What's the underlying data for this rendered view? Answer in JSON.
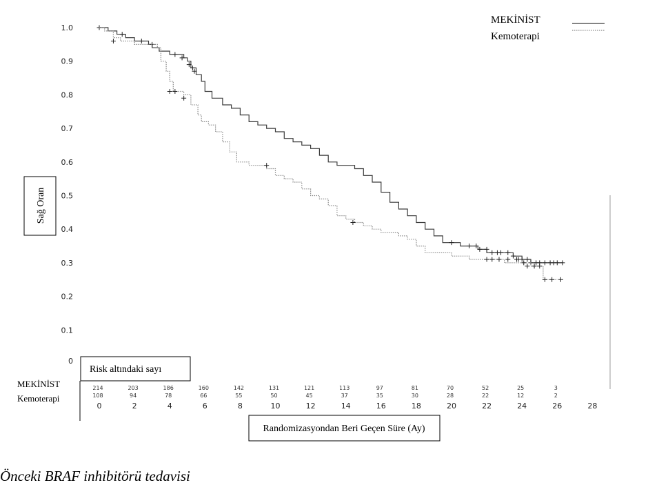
{
  "chart_data": {
    "type": "line",
    "title": "",
    "ylabel": "Sağ Oran",
    "xlabel": "Randomizasyondan Beri Geçen Süre (Ay)",
    "xlim": [
      0,
      28
    ],
    "ylim": [
      0,
      1.0
    ],
    "x_ticks": [
      0,
      2,
      4,
      6,
      8,
      10,
      12,
      14,
      16,
      18,
      20,
      22,
      24,
      26,
      28
    ],
    "y_ticks": [
      {
        "v": 1.0,
        "label": "1.0"
      },
      {
        "v": 0.9,
        "label": "0.9"
      },
      {
        "v": 0.8,
        "label": "0.8"
      },
      {
        "v": 0.7,
        "label": "0.7"
      },
      {
        "v": 0.6,
        "label": "0.6"
      },
      {
        "v": 0.5,
        "label": "0.5"
      },
      {
        "v": 0.4,
        "label": "0.4"
      },
      {
        "v": 0.3,
        "label": "0.3"
      },
      {
        "v": 0.2,
        "label": "0.2"
      },
      {
        "v": 0.1,
        "label": "0.1"
      },
      {
        "v": 0,
        "label": "0"
      }
    ],
    "legend_position": "top-right",
    "series": [
      {
        "name": "MEKİNİST",
        "color": "#3a3a3a",
        "style": "solid",
        "points": [
          [
            0,
            1.0
          ],
          [
            0.5,
            0.99
          ],
          [
            1,
            0.98
          ],
          [
            1.5,
            0.97
          ],
          [
            2,
            0.96
          ],
          [
            2.8,
            0.95
          ],
          [
            3,
            0.94
          ],
          [
            3.4,
            0.93
          ],
          [
            4,
            0.92
          ],
          [
            4.8,
            0.91
          ],
          [
            5,
            0.9
          ],
          [
            5.2,
            0.88
          ],
          [
            5.5,
            0.86
          ],
          [
            5.8,
            0.84
          ],
          [
            6,
            0.81
          ],
          [
            6.4,
            0.79
          ],
          [
            7,
            0.77
          ],
          [
            7.5,
            0.76
          ],
          [
            8,
            0.74
          ],
          [
            8.5,
            0.72
          ],
          [
            9,
            0.71
          ],
          [
            9.5,
            0.7
          ],
          [
            10,
            0.69
          ],
          [
            10.5,
            0.67
          ],
          [
            11,
            0.66
          ],
          [
            11.5,
            0.65
          ],
          [
            12,
            0.64
          ],
          [
            12.5,
            0.62
          ],
          [
            13,
            0.6
          ],
          [
            13.5,
            0.59
          ],
          [
            14,
            0.59
          ],
          [
            14.5,
            0.58
          ],
          [
            15,
            0.56
          ],
          [
            15.5,
            0.54
          ],
          [
            16,
            0.51
          ],
          [
            16.5,
            0.48
          ],
          [
            17,
            0.46
          ],
          [
            17.5,
            0.44
          ],
          [
            18,
            0.42
          ],
          [
            18.5,
            0.4
          ],
          [
            19,
            0.38
          ],
          [
            19.5,
            0.36
          ],
          [
            20,
            0.36
          ],
          [
            20.5,
            0.35
          ],
          [
            21,
            0.35
          ],
          [
            21.5,
            0.34
          ],
          [
            22,
            0.33
          ],
          [
            23,
            0.33
          ],
          [
            23.5,
            0.32
          ],
          [
            24,
            0.31
          ],
          [
            24.5,
            0.3
          ],
          [
            25,
            0.3
          ],
          [
            26,
            0.3
          ],
          [
            26.3,
            0.3
          ]
        ],
        "censor": [
          [
            0,
            1.0
          ],
          [
            1.3,
            0.98
          ],
          [
            2.4,
            0.96
          ],
          [
            3.0,
            0.95
          ],
          [
            4.3,
            0.92
          ],
          [
            4.7,
            0.91
          ],
          [
            5.1,
            0.89
          ],
          [
            5.3,
            0.88
          ],
          [
            5.4,
            0.87
          ],
          [
            20.0,
            0.36
          ],
          [
            21.0,
            0.35
          ],
          [
            21.4,
            0.35
          ],
          [
            21.6,
            0.34
          ],
          [
            22.0,
            0.34
          ],
          [
            22.3,
            0.33
          ],
          [
            22.6,
            0.33
          ],
          [
            22.8,
            0.33
          ],
          [
            23.2,
            0.33
          ],
          [
            23.5,
            0.32
          ],
          [
            23.8,
            0.31
          ],
          [
            24.0,
            0.31
          ],
          [
            24.3,
            0.31
          ],
          [
            24.5,
            0.3
          ],
          [
            24.8,
            0.3
          ],
          [
            25.0,
            0.3
          ],
          [
            25.3,
            0.3
          ],
          [
            25.6,
            0.3
          ],
          [
            25.8,
            0.3
          ],
          [
            26.0,
            0.3
          ],
          [
            26.3,
            0.3
          ]
        ]
      },
      {
        "name": "Kemoterapi",
        "color": "#8a8a8a",
        "style": "dotted",
        "points": [
          [
            0,
            1.0
          ],
          [
            0.3,
            0.99
          ],
          [
            0.8,
            0.97
          ],
          [
            1.2,
            0.96
          ],
          [
            2,
            0.95
          ],
          [
            3.3,
            0.94
          ],
          [
            3.5,
            0.9
          ],
          [
            3.8,
            0.87
          ],
          [
            4,
            0.84
          ],
          [
            4.2,
            0.81
          ],
          [
            4.8,
            0.8
          ],
          [
            5.2,
            0.77
          ],
          [
            5.6,
            0.74
          ],
          [
            5.8,
            0.72
          ],
          [
            6.2,
            0.71
          ],
          [
            6.6,
            0.69
          ],
          [
            7,
            0.66
          ],
          [
            7.4,
            0.63
          ],
          [
            7.8,
            0.6
          ],
          [
            8.5,
            0.59
          ],
          [
            9.5,
            0.58
          ],
          [
            10,
            0.56
          ],
          [
            10.5,
            0.55
          ],
          [
            11,
            0.54
          ],
          [
            11.5,
            0.52
          ],
          [
            12,
            0.5
          ],
          [
            12.5,
            0.49
          ],
          [
            13,
            0.47
          ],
          [
            13.5,
            0.44
          ],
          [
            14,
            0.43
          ],
          [
            14.5,
            0.42
          ],
          [
            15,
            0.41
          ],
          [
            15.5,
            0.4
          ],
          [
            16,
            0.39
          ],
          [
            17,
            0.38
          ],
          [
            17.5,
            0.37
          ],
          [
            18,
            0.35
          ],
          [
            18.5,
            0.33
          ],
          [
            19,
            0.33
          ],
          [
            20,
            0.32
          ],
          [
            21,
            0.31
          ],
          [
            22,
            0.31
          ],
          [
            23,
            0.3
          ],
          [
            24,
            0.3
          ],
          [
            24.5,
            0.29
          ],
          [
            25,
            0.29
          ],
          [
            25.2,
            0.25
          ],
          [
            26,
            0.25
          ]
        ],
        "censor": [
          [
            0.8,
            0.96
          ],
          [
            4.0,
            0.81
          ],
          [
            4.3,
            0.81
          ],
          [
            4.8,
            0.79
          ],
          [
            9.5,
            0.59
          ],
          [
            14.4,
            0.42
          ],
          [
            22.0,
            0.31
          ],
          [
            22.3,
            0.31
          ],
          [
            22.7,
            0.31
          ],
          [
            23.2,
            0.31
          ],
          [
            23.7,
            0.31
          ],
          [
            24.1,
            0.3
          ],
          [
            24.3,
            0.29
          ],
          [
            24.7,
            0.29
          ],
          [
            25.0,
            0.29
          ],
          [
            25.3,
            0.25
          ],
          [
            25.7,
            0.25
          ],
          [
            26.2,
            0.25
          ]
        ]
      }
    ],
    "risk_table": {
      "title": "Risk altındaki sayı",
      "times": [
        0,
        2,
        4,
        6,
        8,
        10,
        12,
        14,
        16,
        18,
        20,
        22,
        24,
        26
      ],
      "rows": [
        {
          "label": "MEKİNİST",
          "values": [
            "214",
            "203",
            "186",
            "160",
            "142",
            "131",
            "121",
            "113",
            "97",
            "81",
            "70",
            "52",
            "25",
            "3"
          ]
        },
        {
          "label": "Kemoterapi",
          "values": [
            "108",
            "94",
            "78",
            "66",
            "55",
            "50",
            "45",
            "37",
            "35",
            "30",
            "28",
            "22",
            "12",
            "2"
          ]
        }
      ]
    }
  },
  "caption": "Önceki BRAF inhibitörü tedavisi"
}
